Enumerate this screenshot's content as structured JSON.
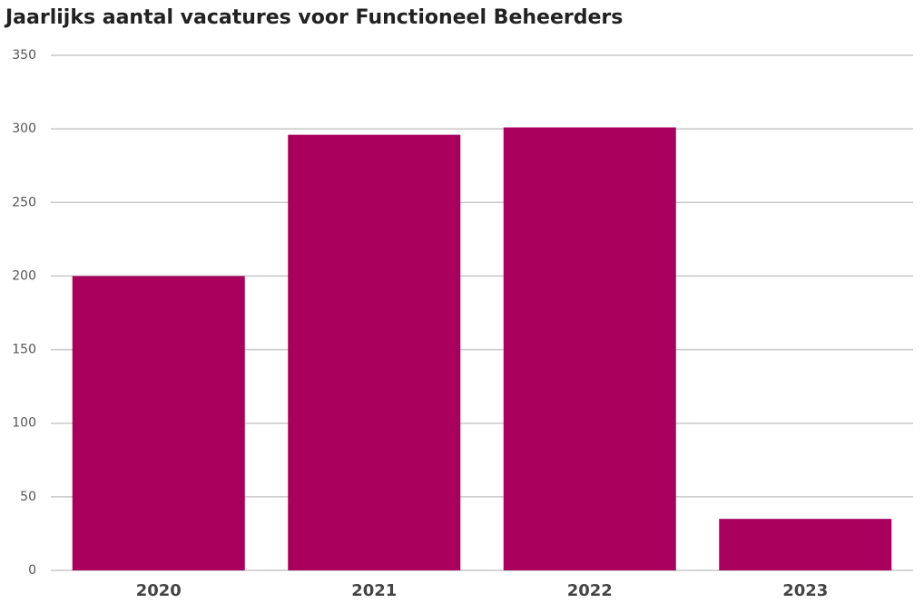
{
  "chart_data": {
    "type": "bar",
    "title": "Jaarlijks aantal vacatures voor Functioneel Beheerders",
    "categories": [
      "2020",
      "2021",
      "2022",
      "2023"
    ],
    "values": [
      200,
      296,
      301,
      35
    ],
    "color": "#a8005c",
    "ylim": [
      0,
      350
    ],
    "yticks": [
      0,
      50,
      100,
      150,
      200,
      250,
      300,
      350
    ],
    "grid": true
  }
}
